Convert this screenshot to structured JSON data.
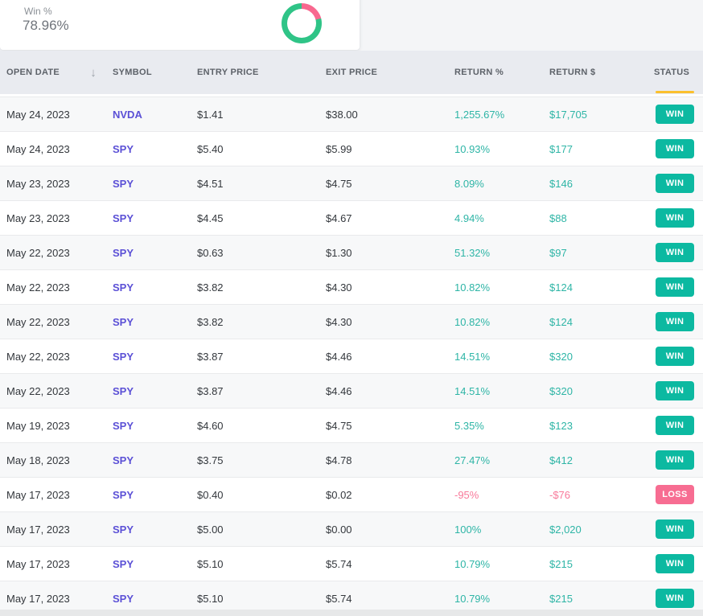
{
  "stat_card": {
    "label": "Win %",
    "value": "78.96%"
  },
  "chart_data": {
    "type": "pie",
    "donut": true,
    "title": "Win %",
    "labels": [
      "Win",
      "Loss"
    ],
    "values": [
      78.96,
      21.04
    ],
    "colors": [
      "#2fc487",
      "#f8688f"
    ],
    "legend": "none"
  },
  "table": {
    "columns": [
      "OPEN DATE",
      "SYMBOL",
      "ENTRY PRICE",
      "EXIT PRICE",
      "RETURN %",
      "RETURN $",
      "STATUS"
    ],
    "sort": {
      "column": "OPEN DATE",
      "direction": "desc",
      "icon_glyph": "↓"
    },
    "rows": [
      {
        "date": "May 24, 2023",
        "symbol": "NVDA",
        "entry": "$1.41",
        "exit": "$38.00",
        "return_pct": "1,255.67%",
        "return_usd": "$17,705",
        "status": "WIN"
      },
      {
        "date": "May 24, 2023",
        "symbol": "SPY",
        "entry": "$5.40",
        "exit": "$5.99",
        "return_pct": "10.93%",
        "return_usd": "$177",
        "status": "WIN"
      },
      {
        "date": "May 23, 2023",
        "symbol": "SPY",
        "entry": "$4.51",
        "exit": "$4.75",
        "return_pct": "8.09%",
        "return_usd": "$146",
        "status": "WIN"
      },
      {
        "date": "May 23, 2023",
        "symbol": "SPY",
        "entry": "$4.45",
        "exit": "$4.67",
        "return_pct": "4.94%",
        "return_usd": "$88",
        "status": "WIN"
      },
      {
        "date": "May 22, 2023",
        "symbol": "SPY",
        "entry": "$0.63",
        "exit": "$1.30",
        "return_pct": "51.32%",
        "return_usd": "$97",
        "status": "WIN"
      },
      {
        "date": "May 22, 2023",
        "symbol": "SPY",
        "entry": "$3.82",
        "exit": "$4.30",
        "return_pct": "10.82%",
        "return_usd": "$124",
        "status": "WIN"
      },
      {
        "date": "May 22, 2023",
        "symbol": "SPY",
        "entry": "$3.82",
        "exit": "$4.30",
        "return_pct": "10.82%",
        "return_usd": "$124",
        "status": "WIN"
      },
      {
        "date": "May 22, 2023",
        "symbol": "SPY",
        "entry": "$3.87",
        "exit": "$4.46",
        "return_pct": "14.51%",
        "return_usd": "$320",
        "status": "WIN"
      },
      {
        "date": "May 22, 2023",
        "symbol": "SPY",
        "entry": "$3.87",
        "exit": "$4.46",
        "return_pct": "14.51%",
        "return_usd": "$320",
        "status": "WIN"
      },
      {
        "date": "May 19, 2023",
        "symbol": "SPY",
        "entry": "$4.60",
        "exit": "$4.75",
        "return_pct": "5.35%",
        "return_usd": "$123",
        "status": "WIN"
      },
      {
        "date": "May 18, 2023",
        "symbol": "SPY",
        "entry": "$3.75",
        "exit": "$4.78",
        "return_pct": "27.47%",
        "return_usd": "$412",
        "status": "WIN"
      },
      {
        "date": "May 17, 2023",
        "symbol": "SPY",
        "entry": "$0.40",
        "exit": "$0.02",
        "return_pct": "-95%",
        "return_usd": "-$76",
        "status": "LOSS"
      },
      {
        "date": "May 17, 2023",
        "symbol": "SPY",
        "entry": "$5.00",
        "exit": "$0.00",
        "return_pct": "100%",
        "return_usd": "$2,020",
        "status": "WIN"
      },
      {
        "date": "May 17, 2023",
        "symbol": "SPY",
        "entry": "$5.10",
        "exit": "$5.74",
        "return_pct": "10.79%",
        "return_usd": "$215",
        "status": "WIN"
      },
      {
        "date": "May 17, 2023",
        "symbol": "SPY",
        "entry": "$5.10",
        "exit": "$5.74",
        "return_pct": "10.79%",
        "return_usd": "$215",
        "status": "WIN"
      }
    ]
  },
  "colors": {
    "win_badge": "#0cb9a1",
    "loss_badge": "#f76d92",
    "win_text": "#2eb5a6",
    "loss_text": "#f8799a",
    "symbol_link": "#5b50d6",
    "status_underline": "#fbc02d",
    "donut_win": "#2fc487",
    "donut_loss": "#f8688f"
  }
}
